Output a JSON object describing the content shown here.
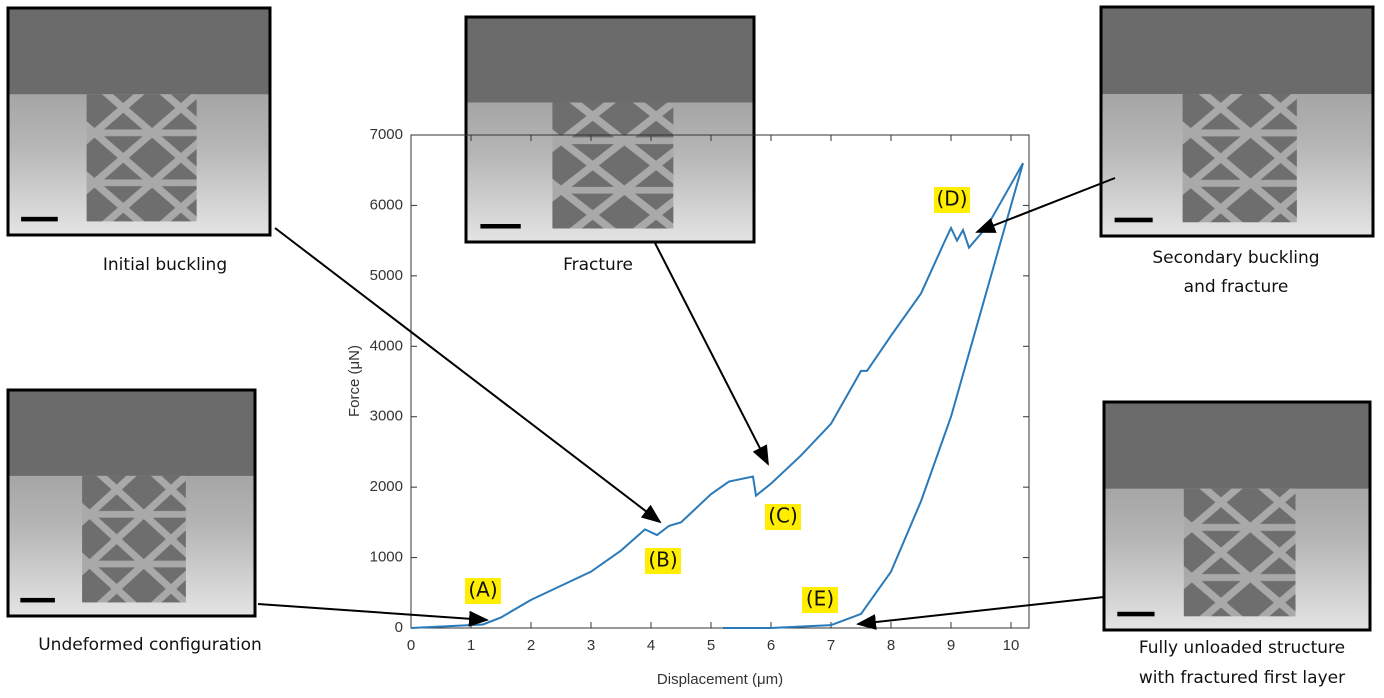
{
  "chart_data": {
    "type": "line",
    "xlabel": "Displacement (μm)",
    "ylabel": "Force (μN)",
    "xlim": [
      0,
      10.3
    ],
    "ylim": [
      0,
      7000
    ],
    "xticks": [
      0,
      1,
      2,
      3,
      4,
      5,
      6,
      7,
      8,
      9,
      10
    ],
    "yticks": [
      0,
      1000,
      2000,
      3000,
      4000,
      5000,
      6000,
      7000
    ],
    "series": [
      {
        "color": "#2a7ab9",
        "x": [
          0,
          1.2,
          1.5,
          2,
          2.5,
          3,
          3.5,
          3.9,
          4.1,
          4.3,
          4.5,
          5,
          5.3,
          5.7,
          5.75,
          6,
          6.5,
          7,
          7.5,
          7.6,
          8,
          8.5,
          8.9,
          9,
          9.1,
          9.2,
          9.3,
          9.6,
          10.2
        ],
        "values": [
          0,
          50,
          150,
          400,
          600,
          800,
          1100,
          1400,
          1320,
          1450,
          1500,
          1900,
          2080,
          2150,
          1880,
          2050,
          2450,
          2900,
          3650,
          3650,
          4150,
          4750,
          5500,
          5680,
          5500,
          5650,
          5400,
          5700,
          6600
        ]
      },
      {
        "color": "#2a7ab9",
        "x": [
          10.2,
          10,
          9.5,
          9,
          8.5,
          8,
          7.5,
          7,
          6,
          5.2
        ],
        "values": [
          6600,
          6000,
          4500,
          3000,
          1800,
          800,
          200,
          40,
          0,
          0
        ]
      }
    ],
    "annotations": [
      "(A)",
      "(B)",
      "(C)",
      "(D)",
      "(E)"
    ],
    "captions": [
      "Initial buckling",
      "Fracture",
      "Secondary buckling",
      "and fracture",
      "Undeformed configuration",
      "Fully unloaded structure",
      "with fractured first layer"
    ]
  }
}
